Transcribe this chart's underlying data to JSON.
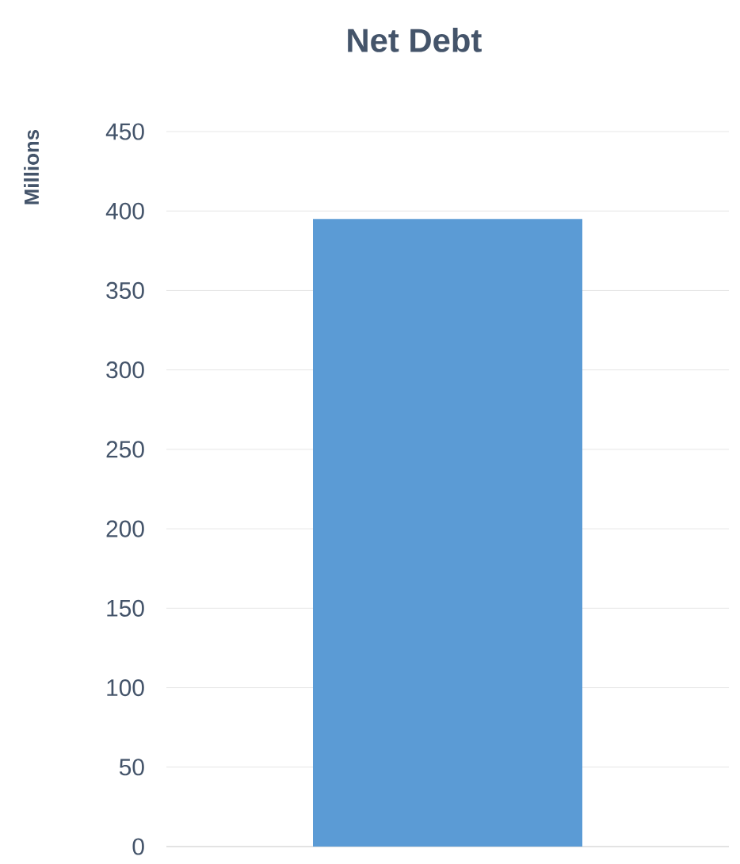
{
  "chart_data": {
    "type": "bar",
    "title": "Net Debt",
    "ylabel": "Millions",
    "categories": [
      null
    ],
    "values": [
      395
    ],
    "color": "#5b9bd5",
    "ylim": [
      0,
      450
    ],
    "yticks": [
      0,
      50,
      100,
      150,
      200,
      250,
      300,
      350,
      400,
      450
    ],
    "grid": "y"
  }
}
